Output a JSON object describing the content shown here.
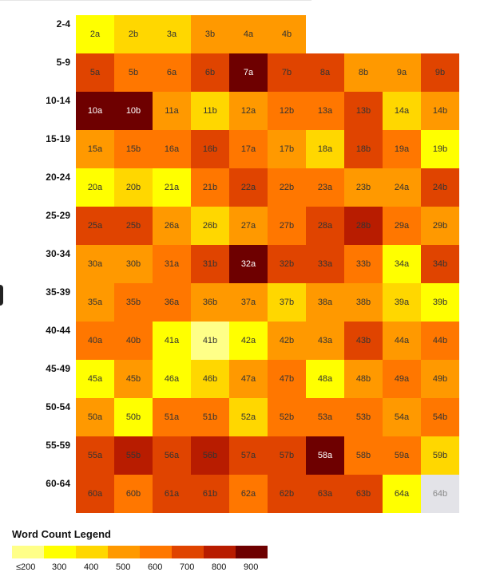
{
  "legend": {
    "title": "Word Count Legend",
    "labels": [
      "≤200",
      "300",
      "400",
      "500",
      "600",
      "700",
      "800",
      "900"
    ],
    "colors": [
      "#ffff88",
      "#ffff00",
      "#ffd700",
      "#ff9900",
      "#ff7700",
      "#e04400",
      "#b81c00",
      "#6e0000"
    ]
  },
  "empty_color": "#e3e3e8",
  "chart_data": {
    "type": "heatmap",
    "rows": [
      {
        "label": "2-4",
        "cells": [
          [
            "2a",
            1
          ],
          [
            "2b",
            2
          ],
          [
            "3a",
            2
          ],
          [
            "3b",
            3
          ],
          [
            "4a",
            3
          ],
          [
            "4b",
            3
          ]
        ]
      },
      {
        "label": "5-9",
        "cells": [
          [
            "5a",
            5
          ],
          [
            "5b",
            4
          ],
          [
            "6a",
            4
          ],
          [
            "6b",
            5
          ],
          [
            "7a",
            7
          ],
          [
            "7b",
            5
          ],
          [
            "8a",
            5
          ],
          [
            "8b",
            3
          ],
          [
            "9a",
            3
          ],
          [
            "9b",
            5
          ]
        ]
      },
      {
        "label": "10-14",
        "cells": [
          [
            "10a",
            7
          ],
          [
            "10b",
            7
          ],
          [
            "11a",
            3
          ],
          [
            "11b",
            2
          ],
          [
            "12a",
            3
          ],
          [
            "12b",
            4
          ],
          [
            "13a",
            4
          ],
          [
            "13b",
            5
          ],
          [
            "14a",
            2
          ],
          [
            "14b",
            3
          ]
        ]
      },
      {
        "label": "15-19",
        "cells": [
          [
            "15a",
            3
          ],
          [
            "15b",
            4
          ],
          [
            "16a",
            4
          ],
          [
            "16b",
            5
          ],
          [
            "17a",
            4
          ],
          [
            "17b",
            3
          ],
          [
            "18a",
            2
          ],
          [
            "18b",
            5
          ],
          [
            "19a",
            4
          ],
          [
            "19b",
            1
          ]
        ]
      },
      {
        "label": "20-24",
        "cells": [
          [
            "20a",
            1
          ],
          [
            "20b",
            2
          ],
          [
            "21a",
            1
          ],
          [
            "21b",
            4
          ],
          [
            "22a",
            5
          ],
          [
            "22b",
            4
          ],
          [
            "23a",
            4
          ],
          [
            "23b",
            3
          ],
          [
            "24a",
            3
          ],
          [
            "24b",
            5
          ]
        ]
      },
      {
        "label": "25-29",
        "cells": [
          [
            "25a",
            5
          ],
          [
            "25b",
            5
          ],
          [
            "26a",
            3
          ],
          [
            "26b",
            2
          ],
          [
            "27a",
            3
          ],
          [
            "27b",
            4
          ],
          [
            "28a",
            5
          ],
          [
            "28b",
            6
          ],
          [
            "29a",
            4
          ],
          [
            "29b",
            3
          ]
        ]
      },
      {
        "label": "30-34",
        "cells": [
          [
            "30a",
            3
          ],
          [
            "30b",
            3
          ],
          [
            "31a",
            4
          ],
          [
            "31b",
            5
          ],
          [
            "32a",
            7
          ],
          [
            "32b",
            5
          ],
          [
            "33a",
            5
          ],
          [
            "33b",
            4
          ],
          [
            "34a",
            1
          ],
          [
            "34b",
            5
          ]
        ]
      },
      {
        "label": "35-39",
        "cells": [
          [
            "35a",
            3
          ],
          [
            "35b",
            4
          ],
          [
            "36a",
            4
          ],
          [
            "36b",
            3
          ],
          [
            "37a",
            3
          ],
          [
            "37b",
            2
          ],
          [
            "38a",
            3
          ],
          [
            "38b",
            3
          ],
          [
            "39a",
            2
          ],
          [
            "39b",
            1
          ]
        ]
      },
      {
        "label": "40-44",
        "cells": [
          [
            "40a",
            4
          ],
          [
            "40b",
            4
          ],
          [
            "41a",
            1
          ],
          [
            "41b",
            0
          ],
          [
            "42a",
            1
          ],
          [
            "42b",
            3
          ],
          [
            "43a",
            3
          ],
          [
            "43b",
            5
          ],
          [
            "44a",
            3
          ],
          [
            "44b",
            4
          ]
        ]
      },
      {
        "label": "45-49",
        "cells": [
          [
            "45a",
            1
          ],
          [
            "45b",
            3
          ],
          [
            "46a",
            1
          ],
          [
            "46b",
            2
          ],
          [
            "47a",
            3
          ],
          [
            "47b",
            4
          ],
          [
            "48a",
            1
          ],
          [
            "48b",
            3
          ],
          [
            "49a",
            4
          ],
          [
            "49b",
            3
          ]
        ]
      },
      {
        "label": "50-54",
        "cells": [
          [
            "50a",
            3
          ],
          [
            "50b",
            1
          ],
          [
            "51a",
            4
          ],
          [
            "51b",
            4
          ],
          [
            "52a",
            2
          ],
          [
            "52b",
            4
          ],
          [
            "53a",
            4
          ],
          [
            "53b",
            4
          ],
          [
            "54a",
            3
          ],
          [
            "54b",
            4
          ]
        ]
      },
      {
        "label": "55-59",
        "cells": [
          [
            "55a",
            5
          ],
          [
            "55b",
            6
          ],
          [
            "56a",
            5
          ],
          [
            "56b",
            6
          ],
          [
            "57a",
            5
          ],
          [
            "57b",
            5
          ],
          [
            "58a",
            7
          ],
          [
            "58b",
            4
          ],
          [
            "59a",
            4
          ],
          [
            "59b",
            2
          ]
        ]
      },
      {
        "label": "60-64",
        "cells": [
          [
            "60a",
            5
          ],
          [
            "60b",
            4
          ],
          [
            "61a",
            5
          ],
          [
            "61b",
            5
          ],
          [
            "62a",
            4
          ],
          [
            "62b",
            5
          ],
          [
            "63a",
            5
          ],
          [
            "63b",
            5
          ],
          [
            "64a",
            1
          ],
          [
            "64b",
            -1
          ]
        ]
      }
    ]
  }
}
